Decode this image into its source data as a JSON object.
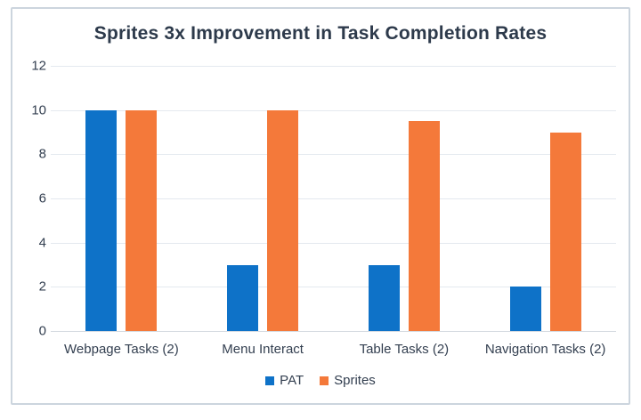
{
  "chart_data": {
    "type": "bar",
    "title": "Sprites 3x Improvement in Task Completion Rates",
    "categories": [
      "Webpage Tasks (2)",
      "Menu Interact",
      "Table Tasks (2)",
      "Navigation Tasks (2)"
    ],
    "series": [
      {
        "name": "PAT",
        "color": "#0e72c8",
        "values": [
          10,
          3,
          3,
          2
        ]
      },
      {
        "name": "Sprites",
        "color": "#f4793a",
        "values": [
          10,
          10,
          9.5,
          9
        ]
      }
    ],
    "ylim": [
      0,
      12
    ],
    "yticks": [
      0,
      2,
      4,
      6,
      8,
      10,
      12
    ],
    "grid": true,
    "legend_position": "bottom"
  },
  "colors": {
    "border": "#ccd5de",
    "gridline": "#e4e9ef",
    "axis_line": "#d5dae1",
    "text": "#333f50",
    "title_text": "#2d3a4b",
    "background": "#ffffff"
  }
}
